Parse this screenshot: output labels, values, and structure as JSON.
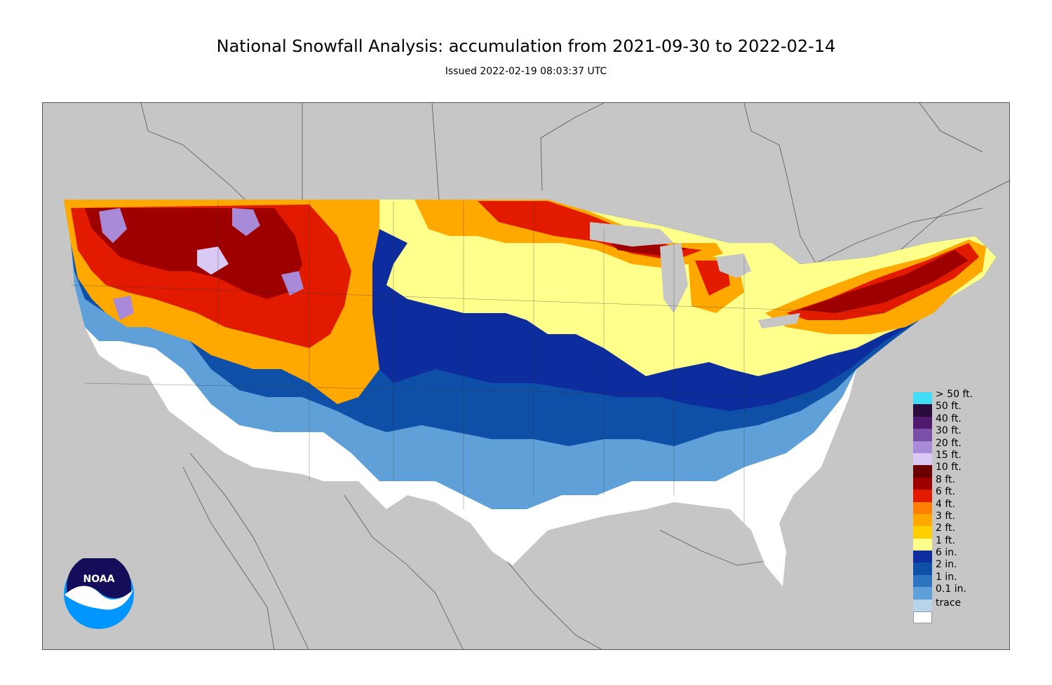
{
  "title": "National Snowfall Analysis: accumulation from 2021-09-30 to 2022-02-14",
  "subtitle": "Issued 2022-02-19 08:03:37 UTC",
  "logo_text": "NOAA",
  "colors": {
    "background_land": "#c6c6c6",
    "borders": "#555555"
  },
  "legend": [
    {
      "label": "> 50 ft.",
      "color": "#41dcf5"
    },
    {
      "label": "50 ft.",
      "color": "#2b0a3d"
    },
    {
      "label": "40 ft.",
      "color": "#4f1a6e"
    },
    {
      "label": "30 ft.",
      "color": "#7a4fa8"
    },
    {
      "label": "20 ft.",
      "color": "#a98ad8"
    },
    {
      "label": "15 ft.",
      "color": "#d8c9f5"
    },
    {
      "label": "10 ft.",
      "color": "#6b0000"
    },
    {
      "label": "8 ft.",
      "color": "#9e0000"
    },
    {
      "label": "6 ft.",
      "color": "#e11a00"
    },
    {
      "label": "4 ft.",
      "color": "#ff7f00"
    },
    {
      "label": "3 ft.",
      "color": "#ffa800"
    },
    {
      "label": "2 ft.",
      "color": "#ffd000"
    },
    {
      "label": "1 ft.",
      "color": "#ffff8c"
    },
    {
      "label": "6 in.",
      "color": "#0d2c9e"
    },
    {
      "label": "2 in.",
      "color": "#0e4fa8"
    },
    {
      "label": "1 in.",
      "color": "#2d74c0"
    },
    {
      "label": "0.1 in.",
      "color": "#5fa0d8"
    },
    {
      "label": "trace",
      "color": "#b7d4ea"
    },
    {
      "label": "",
      "color": "#ffffff"
    }
  ]
}
